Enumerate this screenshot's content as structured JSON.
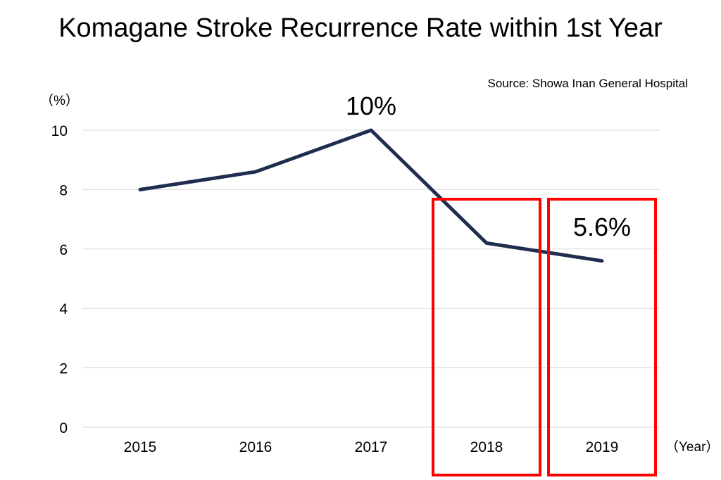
{
  "page": {
    "title": "Komagane Stroke Recurrence Rate within 1st Year",
    "source": "Source: Showa Inan General Hospital"
  },
  "chart_data": {
    "type": "line",
    "title": "Komagane Stroke Recurrence Rate within 1st Year",
    "ylabel": "（%）",
    "xlabel": "（Year）",
    "categories": [
      "2015",
      "2016",
      "2017",
      "2018",
      "2019"
    ],
    "series": [
      {
        "values": [
          8.0,
          8.6,
          10.0,
          6.2,
          5.6
        ],
        "color": "#1f2d4e"
      }
    ],
    "ylim": [
      0,
      10
    ],
    "yticks": [
      "0",
      "2",
      "4",
      "6",
      "8",
      "10"
    ],
    "grid": true,
    "annotations": [
      {
        "text": "10%",
        "category": "2017",
        "value": 10.0
      },
      {
        "text": "5.6%",
        "category": "2019",
        "value": 5.6
      }
    ],
    "highlight_categories": [
      "2018",
      "2019"
    ],
    "highlight_color": "#ff0000"
  }
}
